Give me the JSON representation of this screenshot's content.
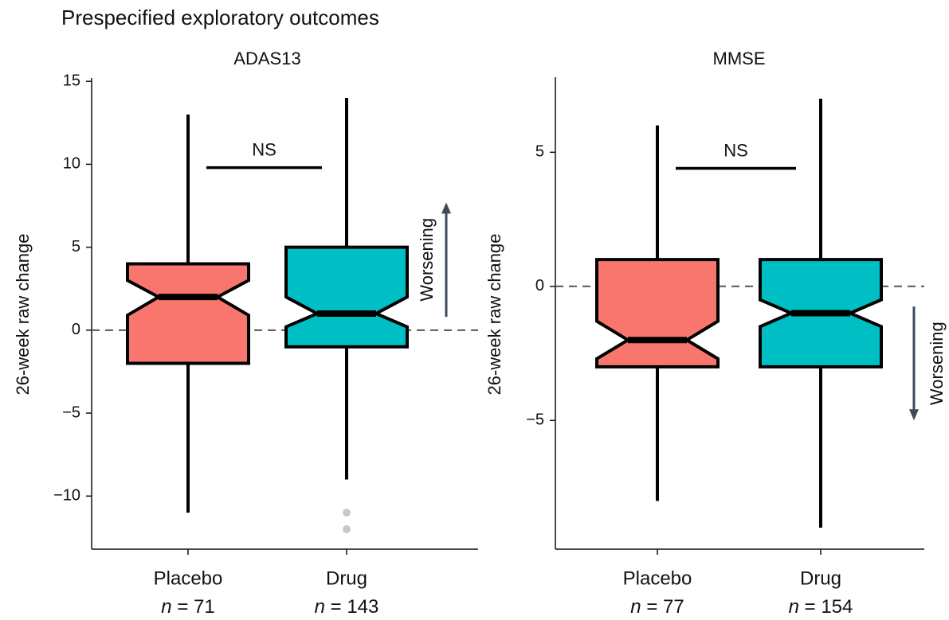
{
  "title": "Prespecified exploratory outcomes",
  "chart_data": [
    {
      "type": "box",
      "title": "ADAS13",
      "ylabel": "26-week raw change",
      "categories": [
        "Placebo",
        "Drug"
      ],
      "n_labels": [
        "n = 71",
        "n = 143"
      ],
      "colors": [
        "#f8766d",
        "#00bfc4"
      ],
      "boxes": [
        {
          "whislo": -11,
          "q1": -2,
          "med": 2,
          "q3": 4,
          "whishi": 13,
          "notch_lo": 0.9,
          "notch_hi": 3.0,
          "fliers": []
        },
        {
          "whislo": -9,
          "q1": -1,
          "med": 1,
          "q3": 5,
          "whishi": 14,
          "notch_lo": 0.2,
          "notch_hi": 2.0,
          "fliers": [
            -11,
            -12
          ]
        }
      ],
      "ylim": [
        -13.2,
        15.2
      ],
      "yticks": [
        {
          "value": -10,
          "label": "−10"
        },
        {
          "value": -5,
          "label": "−5"
        },
        0,
        5,
        10,
        15
      ],
      "reference_line": 0,
      "bracket": {
        "text": "NS",
        "y": 9.8
      },
      "arrow": {
        "text": "Worsening",
        "from": 0.8,
        "to": 7.7
      }
    },
    {
      "type": "box",
      "title": "MMSE",
      "ylabel": "26-week raw change",
      "categories": [
        "Placebo",
        "Drug"
      ],
      "n_labels": [
        "n = 77",
        "n = 154"
      ],
      "colors": [
        "#f8766d",
        "#00bfc4"
      ],
      "boxes": [
        {
          "whislo": -8,
          "q1": -3,
          "med": -2,
          "q3": 1,
          "whishi": 6,
          "notch_lo": -2.7,
          "notch_hi": -1.3,
          "fliers": []
        },
        {
          "whislo": -9,
          "q1": -3,
          "med": -1,
          "q3": 1,
          "whishi": 7,
          "notch_lo": -1.5,
          "notch_hi": -0.5,
          "fliers": []
        }
      ],
      "ylim": [
        -9.8,
        7.8
      ],
      "yticks": [
        {
          "value": -5,
          "label": "−5"
        },
        0,
        5
      ],
      "reference_line": 0,
      "bracket": {
        "text": "NS",
        "y": 4.4
      },
      "arrow": {
        "text": "Worsening",
        "from": -0.75,
        "to": -5
      }
    }
  ]
}
